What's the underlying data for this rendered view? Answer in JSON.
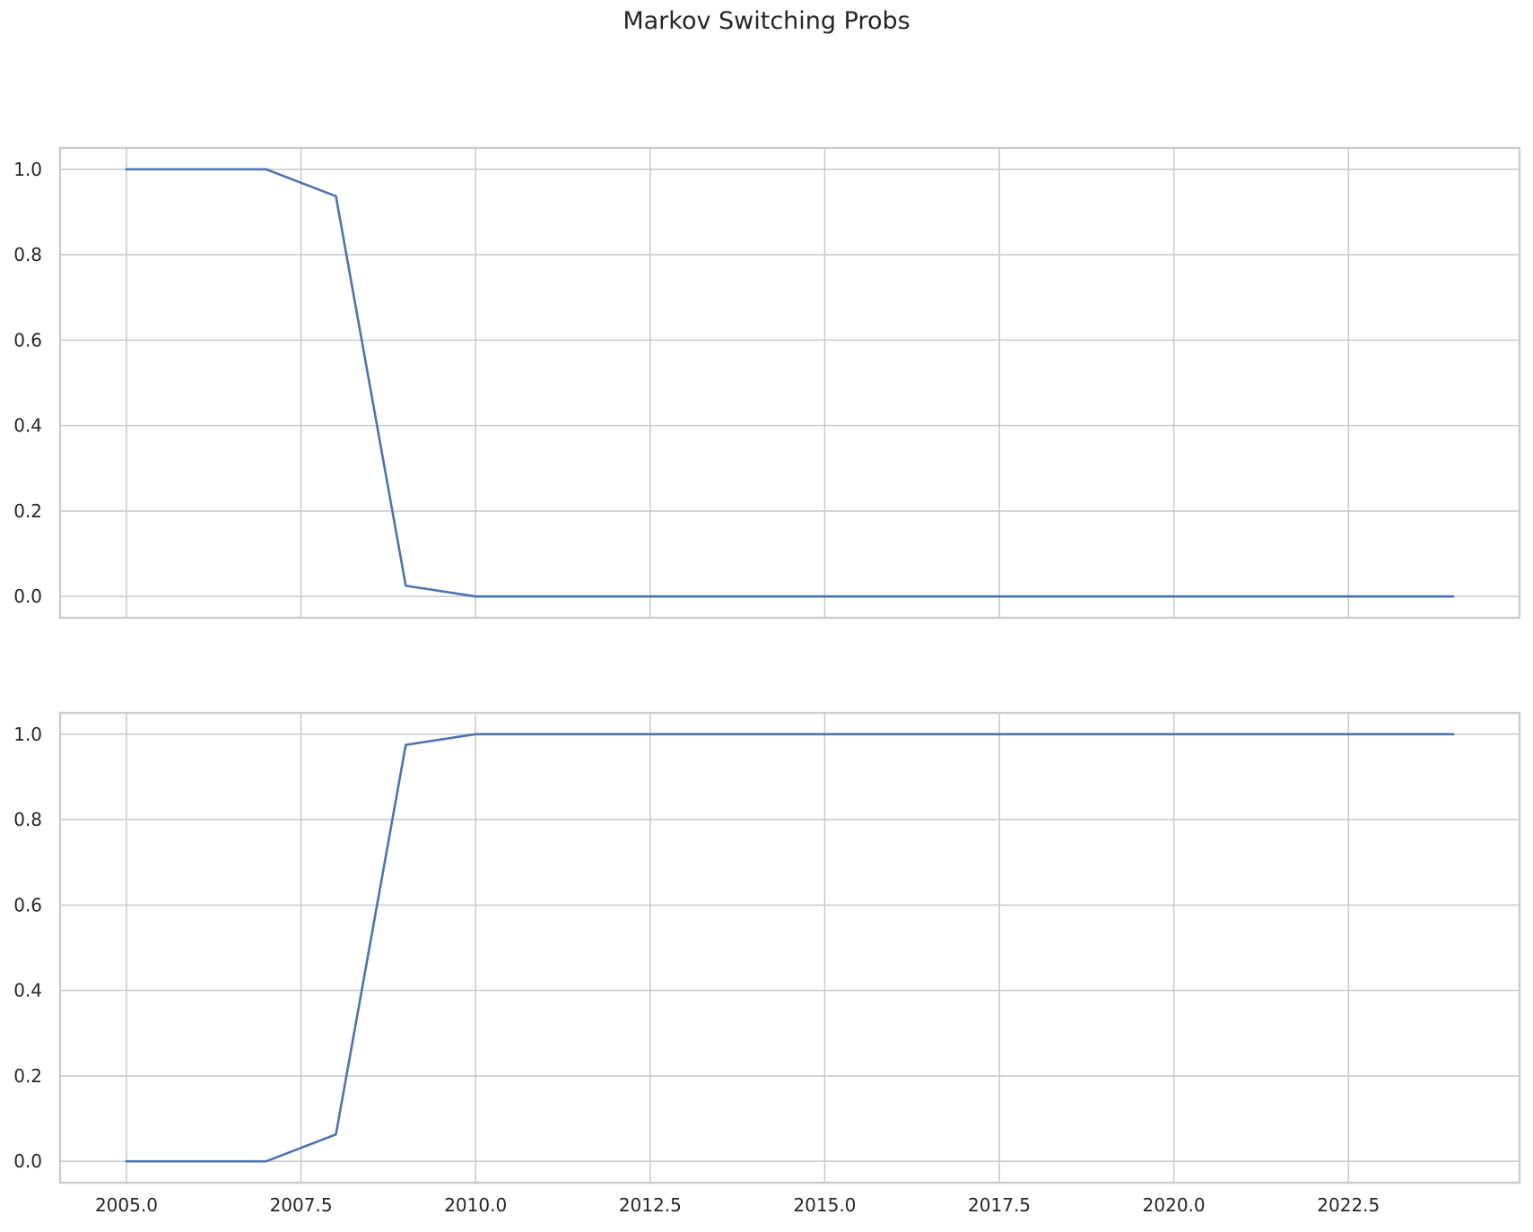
{
  "figure": {
    "title": "Markov Switching Probs"
  },
  "chart_data": [
    {
      "type": "line",
      "title": "",
      "xlabel": "",
      "ylabel": "",
      "xlim": [
        2004.05,
        2024.95
      ],
      "ylim": [
        -0.05,
        1.05
      ],
      "grid": true,
      "xticks": [
        2005.0,
        2007.5,
        2010.0,
        2012.5,
        2015.0,
        2017.5,
        2020.0,
        2022.5
      ],
      "xtick_labels_visible": false,
      "yticks": [
        0.0,
        0.2,
        0.4,
        0.6,
        0.8,
        1.0
      ],
      "ytick_labels": [
        "0.0",
        "0.2",
        "0.4",
        "0.6",
        "0.8",
        "1.0"
      ],
      "series": [
        {
          "color": "#4c72b0",
          "x": [
            2005,
            2006,
            2007,
            2008,
            2009,
            2010,
            2011,
            2012,
            2013,
            2014,
            2015,
            2016,
            2017,
            2018,
            2019,
            2020,
            2021,
            2022,
            2023,
            2024
          ],
          "y": [
            1.0,
            1.0,
            1.0,
            0.937,
            0.025,
            0.0,
            0.0,
            0.0,
            0.0,
            0.0,
            0.0,
            0.0,
            0.0,
            0.0,
            0.0,
            0.0,
            0.0,
            0.0,
            0.0,
            0.0
          ]
        }
      ]
    },
    {
      "type": "line",
      "title": "",
      "xlabel": "",
      "ylabel": "",
      "xlim": [
        2004.05,
        2024.95
      ],
      "ylim": [
        -0.05,
        1.05
      ],
      "grid": true,
      "xticks": [
        2005.0,
        2007.5,
        2010.0,
        2012.5,
        2015.0,
        2017.5,
        2020.0,
        2022.5
      ],
      "xtick_labels": [
        "2005.0",
        "2007.5",
        "2010.0",
        "2012.5",
        "2015.0",
        "2017.5",
        "2020.0",
        "2022.5"
      ],
      "xtick_labels_visible": true,
      "yticks": [
        0.0,
        0.2,
        0.4,
        0.6,
        0.8,
        1.0
      ],
      "ytick_labels": [
        "0.0",
        "0.2",
        "0.4",
        "0.6",
        "0.8",
        "1.0"
      ],
      "series": [
        {
          "color": "#4c72b0",
          "x": [
            2005,
            2006,
            2007,
            2008,
            2009,
            2010,
            2011,
            2012,
            2013,
            2014,
            2015,
            2016,
            2017,
            2018,
            2019,
            2020,
            2021,
            2022,
            2023,
            2024
          ],
          "y": [
            0.0,
            0.0,
            0.0,
            0.063,
            0.975,
            1.0,
            1.0,
            1.0,
            1.0,
            1.0,
            1.0,
            1.0,
            1.0,
            1.0,
            1.0,
            1.0,
            1.0,
            1.0,
            1.0,
            1.0
          ]
        }
      ]
    }
  ],
  "colors": {
    "line": "#4c72b0",
    "grid": "#cccccc",
    "spine": "#cccccc",
    "text": "#262626",
    "background": "#ffffff"
  }
}
